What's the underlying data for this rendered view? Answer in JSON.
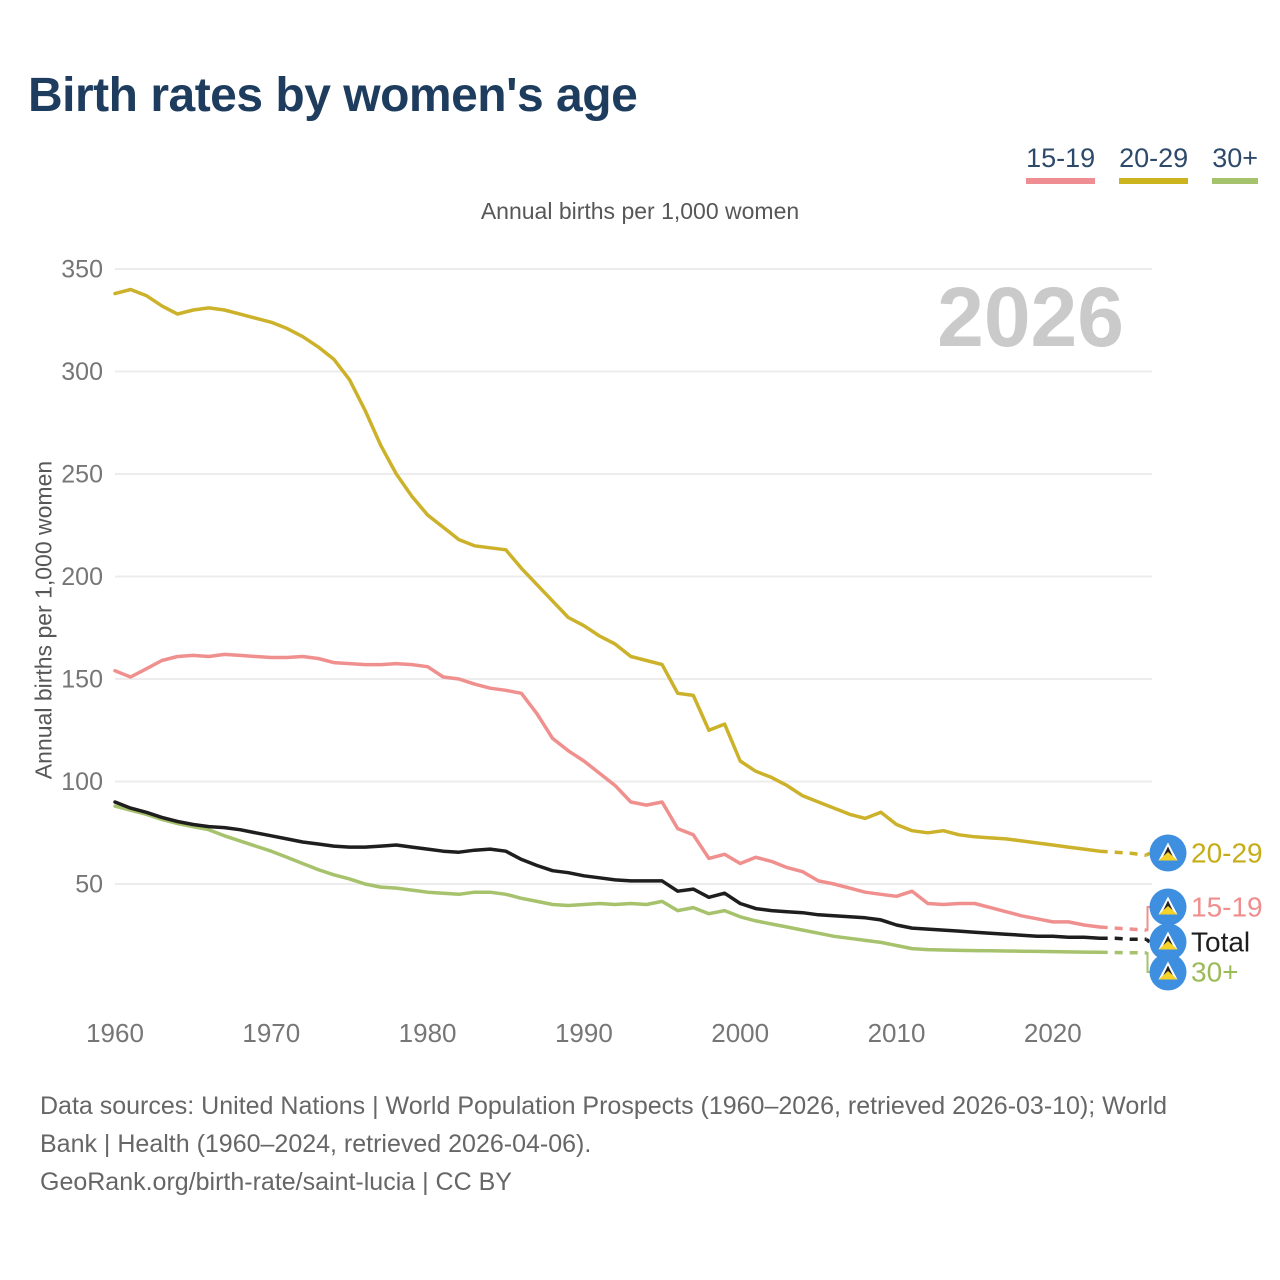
{
  "header": {
    "title": "Birth rates by women's age"
  },
  "legend": {
    "items": [
      {
        "label": "15-19",
        "color": "#ef8e92"
      },
      {
        "label": "20-29",
        "color": "#ccb41e"
      },
      {
        "label": "30+",
        "color": "#a5c26d"
      }
    ]
  },
  "chart": {
    "subtitle": "Annual births per 1,000 women",
    "y_axis_label": "Annual births per 1,000 women",
    "watermark": "2026",
    "end_labels": [
      "20-29",
      "15-19",
      "Total",
      "30+"
    ]
  },
  "chart_data": {
    "type": "line",
    "title": "Birth rates by women's age",
    "subtitle": "Annual births per 1,000 women",
    "ylabel": "Annual births per 1,000 women",
    "x_start": 1960,
    "x_end": 2026,
    "xticks": [
      1960,
      1970,
      1980,
      1990,
      2000,
      2010,
      2020
    ],
    "yticks": [
      50,
      100,
      150,
      200,
      250,
      300,
      350
    ],
    "ylim": [
      0,
      360
    ],
    "grid": "horizontal",
    "legend_position": "top-right",
    "projection_start_year": 2023,
    "watermark": "2026",
    "series": [
      {
        "name": "20-29",
        "color": "#ccb22a",
        "label_color": "#c6ad18",
        "values": [
          338,
          340,
          337,
          332,
          328,
          330,
          331,
          330,
          328,
          326,
          324,
          321,
          317,
          312,
          306,
          296,
          281,
          264,
          250,
          239,
          230,
          224,
          218,
          215,
          214,
          213,
          204,
          196,
          188,
          180,
          176,
          171,
          167,
          161,
          159,
          157,
          143,
          142,
          125,
          128,
          110,
          105,
          102,
          98,
          93,
          90,
          87,
          84,
          82,
          85,
          79,
          76,
          75,
          76,
          74,
          73,
          72.5,
          72,
          71,
          70,
          69,
          68,
          67,
          66,
          65.5,
          65,
          64
        ]
      },
      {
        "name": "15-19",
        "color": "#f0908e",
        "label_color": "#ef8e8e",
        "values": [
          154,
          151,
          155,
          159,
          161,
          161.5,
          161,
          162,
          161.5,
          161,
          160.5,
          160.5,
          161,
          160,
          158,
          157.5,
          157,
          157,
          157.5,
          157,
          156,
          151,
          150,
          147.5,
          145.5,
          144.5,
          143,
          133,
          121,
          115,
          110,
          104,
          98,
          90,
          88.5,
          90,
          77,
          74,
          62.5,
          64.5,
          60,
          63,
          61,
          58,
          56,
          51.5,
          50,
          48,
          46,
          45,
          44,
          46.5,
          40.5,
          40,
          40.5,
          40.5,
          38.5,
          36.5,
          34.5,
          33,
          31.5,
          31.5,
          30,
          29,
          28.5,
          28,
          27.5
        ]
      },
      {
        "name": "30+",
        "color": "#a6c26d",
        "label_color": "#9cba57",
        "values": [
          88,
          86,
          84,
          81.5,
          79.5,
          78,
          76.5,
          73.5,
          71,
          68.5,
          66,
          63,
          60,
          57,
          54.5,
          52.5,
          50,
          48.5,
          48,
          47,
          46,
          45.5,
          45,
          46,
          46,
          45,
          43,
          41.5,
          40,
          39.5,
          40,
          40.5,
          40,
          40.5,
          40,
          41.5,
          37,
          38.5,
          35.5,
          37,
          34,
          32,
          30.5,
          29,
          27.5,
          26,
          24.5,
          23.5,
          22.5,
          21.5,
          20,
          18.5,
          18,
          17.8,
          17.6,
          17.5,
          17.4,
          17.3,
          17.2,
          17.1,
          17,
          16.9,
          16.8,
          16.7,
          16.6,
          16.5,
          16.4
        ]
      },
      {
        "name": "Total",
        "color": "#1e1e1e",
        "label_color": "#1e1e1e",
        "values": [
          90,
          87,
          85,
          82.5,
          80.5,
          79,
          78,
          77.5,
          76.5,
          75,
          73.5,
          72,
          70.5,
          69.5,
          68.5,
          68,
          68,
          68.5,
          69,
          68,
          67,
          66,
          65.5,
          66.5,
          67,
          66,
          62,
          59,
          56.5,
          55.5,
          54,
          53,
          52,
          51.5,
          51.5,
          51.5,
          46.5,
          47.5,
          43.5,
          45.5,
          40.5,
          38,
          37,
          36.5,
          36,
          35,
          34.5,
          34,
          33.5,
          32.5,
          30,
          28.5,
          28,
          27.5,
          27,
          26.5,
          26,
          25.5,
          25,
          24.5,
          24.5,
          24,
          24,
          23.5,
          23.5,
          23,
          23
        ]
      }
    ],
    "flag": {
      "name": "saint-lucia",
      "blue": "#3f8fe0",
      "yellow": "#f5d328",
      "black": "#222222",
      "white": "#ffffff"
    }
  },
  "footer": {
    "source_line1": "Data sources: United Nations | World Population Prospects (1960–2026, retrieved 2026-03-10); World",
    "source_line2": "Bank | Health (1960–2024, retrieved 2026-04-06).",
    "attribution": "GeoRank.org/birth-rate/saint-lucia | CC BY"
  }
}
